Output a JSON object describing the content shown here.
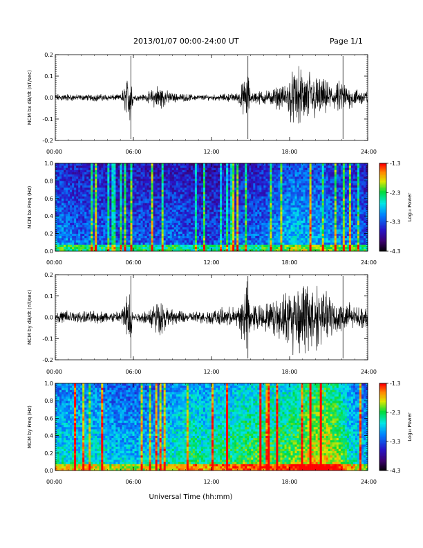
{
  "header": {
    "date_title": "2013/01/07  00:00-24:00 UT",
    "page_label": "Page 1/1"
  },
  "chart_data": [
    {
      "type": "line",
      "ylabel": "MCM bx dB/dt (nT/sec)",
      "xlabel": "",
      "x_ticks": [
        "00:00",
        "06:00",
        "12:00",
        "18:00",
        "24:00"
      ],
      "y_ticks": [
        "-0.2",
        "-0.1",
        "0.0",
        "0.1",
        "0.2"
      ],
      "xlim_hours": [
        0,
        24
      ],
      "ylim": [
        -0.2,
        0.2
      ],
      "series": [
        {
          "x_hours": [
            0,
            1,
            2,
            3,
            4,
            5,
            5.8,
            6,
            7,
            7.5,
            8,
            8.5,
            9,
            10,
            11,
            12,
            13,
            14,
            14.8,
            15,
            16,
            16.5,
            17,
            17.5,
            18,
            18.5,
            19,
            19.5,
            20,
            20.5,
            21,
            21.5,
            22,
            22.5,
            23,
            24
          ],
          "amplitude": [
            0.02,
            0.02,
            0.015,
            0.02,
            0.018,
            0.015,
            0.15,
            0.015,
            0.02,
            0.05,
            0.08,
            0.04,
            0.025,
            0.02,
            0.015,
            0.015,
            0.02,
            0.025,
            0.14,
            0.03,
            0.04,
            0.04,
            0.06,
            0.06,
            0.12,
            0.15,
            0.16,
            0.15,
            0.12,
            0.1,
            0.08,
            0.07,
            0.1,
            0.06,
            0.05,
            0.04
          ]
        }
      ]
    },
    {
      "type": "heatmap",
      "ylabel": "MCM bx Freq (Hz)",
      "x_ticks": [
        "00:00",
        "06:00",
        "12:00",
        "18:00",
        "24:00"
      ],
      "y_ticks": [
        "0.0",
        "0.2",
        "0.4",
        "0.6",
        "0.8",
        "1.0"
      ],
      "ylim": [
        0,
        1.0
      ],
      "colorbar": {
        "label": "Log₁₀ Power",
        "ticks": [
          "-1.3",
          "-2.3",
          "-3.3",
          "-4.3"
        ],
        "range": [
          -4.3,
          -1.3
        ]
      },
      "activity_by_hour": [
        0.35,
        0.3,
        0.3,
        0.3,
        0.25,
        0.25,
        0.3,
        0.25,
        0.3,
        0.3,
        0.25,
        0.25,
        0.25,
        0.3,
        0.3,
        0.3,
        0.35,
        0.4,
        0.45,
        0.4,
        0.4,
        0.35,
        0.35,
        0.3
      ]
    },
    {
      "type": "line",
      "ylabel": "MCM by dB/dt (nT/sec)",
      "xlabel": "",
      "x_ticks": [
        "00:00",
        "06:00",
        "12:00",
        "18:00",
        "24:00"
      ],
      "y_ticks": [
        "-0.2",
        "-0.1",
        "0.0",
        "0.1",
        "0.2"
      ],
      "xlim_hours": [
        0,
        24
      ],
      "ylim": [
        -0.2,
        0.2
      ],
      "series": [
        {
          "x_hours": [
            0,
            1,
            2,
            3,
            4,
            5,
            5.8,
            6,
            7,
            7.5,
            8,
            8.5,
            9,
            10,
            11,
            12,
            13,
            14,
            14.8,
            15,
            16,
            16.5,
            17,
            17.5,
            18,
            18.5,
            19,
            19.5,
            20,
            20.5,
            21,
            21.5,
            22,
            22.5,
            23,
            24
          ],
          "amplitude": [
            0.03,
            0.04,
            0.03,
            0.035,
            0.03,
            0.03,
            0.18,
            0.02,
            0.04,
            0.07,
            0.1,
            0.06,
            0.04,
            0.03,
            0.03,
            0.04,
            0.05,
            0.06,
            0.2,
            0.08,
            0.07,
            0.08,
            0.1,
            0.12,
            0.18,
            0.2,
            0.2,
            0.2,
            0.18,
            0.15,
            0.12,
            0.1,
            0.1,
            0.08,
            0.06,
            0.05
          ]
        }
      ]
    },
    {
      "type": "heatmap",
      "ylabel": "MCM by Freq (Hz)",
      "xlabel": "Universal Time (hh:mm)",
      "x_ticks": [
        "00:00",
        "06:00",
        "12:00",
        "18:00",
        "24:00"
      ],
      "y_ticks": [
        "0.0",
        "0.2",
        "0.4",
        "0.6",
        "0.8",
        "1.0"
      ],
      "ylim": [
        0,
        1.0
      ],
      "colorbar": {
        "label": "Log₁₀ Power",
        "ticks": [
          "-1.3",
          "-2.3",
          "-3.3",
          "-4.3"
        ],
        "range": [
          -4.3,
          -1.3
        ]
      },
      "activity_by_hour": [
        0.5,
        0.5,
        0.5,
        0.5,
        0.45,
        0.45,
        0.45,
        0.45,
        0.5,
        0.55,
        0.6,
        0.55,
        0.6,
        0.6,
        0.65,
        0.65,
        0.65,
        0.65,
        0.7,
        0.8,
        0.8,
        0.75,
        0.55,
        0.45
      ]
    }
  ]
}
